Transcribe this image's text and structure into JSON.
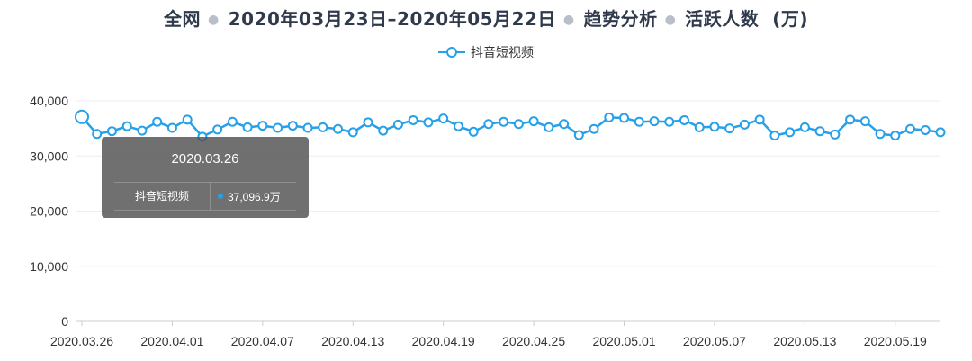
{
  "header": {
    "scope": "全网",
    "date_range": "2020年03月23日–2020年05月22日",
    "analysis": "趋势分析",
    "metric": "活跃人数  (万)"
  },
  "colors": {
    "line": "#26a0e8",
    "grid": "#eeeeee",
    "axis": "#cccccc",
    "text": "#333333",
    "title": "#2f3a4c"
  },
  "tooltip": {
    "date": "2020.03.26",
    "series_name": "抖音短视频",
    "value_text": "37,096.9万"
  },
  "chart_data": {
    "type": "line",
    "title": "",
    "xlabel": "",
    "ylabel": "",
    "ylim": [
      0,
      40000
    ],
    "y_ticks": [
      "0",
      "10,000",
      "20,000",
      "30,000",
      "40,000"
    ],
    "x_tick_labels": [
      "2020.03.26",
      "2020.04.01",
      "2020.04.07",
      "2020.04.13",
      "2020.04.19",
      "2020.04.25",
      "2020.05.01",
      "2020.05.07",
      "2020.05.13",
      "2020.05.19"
    ],
    "grid": true,
    "legend_position": "top-center",
    "x": [
      "2020.03.26",
      "2020.03.27",
      "2020.03.28",
      "2020.03.29",
      "2020.03.30",
      "2020.03.31",
      "2020.04.01",
      "2020.04.02",
      "2020.04.03",
      "2020.04.04",
      "2020.04.05",
      "2020.04.06",
      "2020.04.07",
      "2020.04.08",
      "2020.04.09",
      "2020.04.10",
      "2020.04.11",
      "2020.04.12",
      "2020.04.13",
      "2020.04.14",
      "2020.04.15",
      "2020.04.16",
      "2020.04.17",
      "2020.04.18",
      "2020.04.19",
      "2020.04.20",
      "2020.04.21",
      "2020.04.22",
      "2020.04.23",
      "2020.04.24",
      "2020.04.25",
      "2020.04.26",
      "2020.04.27",
      "2020.04.28",
      "2020.04.29",
      "2020.04.30",
      "2020.05.01",
      "2020.05.02",
      "2020.05.03",
      "2020.05.04",
      "2020.05.05",
      "2020.05.06",
      "2020.05.07",
      "2020.05.08",
      "2020.05.09",
      "2020.05.10",
      "2020.05.11",
      "2020.05.12",
      "2020.05.13",
      "2020.05.14",
      "2020.05.15",
      "2020.05.16",
      "2020.05.17",
      "2020.05.18",
      "2020.05.19",
      "2020.05.20",
      "2020.05.21",
      "2020.05.22"
    ],
    "series": [
      {
        "name": "抖音短视频",
        "values": [
          37096.9,
          34000,
          34500,
          35400,
          34600,
          36200,
          35100,
          36600,
          33500,
          34800,
          36200,
          35200,
          35500,
          35100,
          35500,
          35100,
          35200,
          34900,
          34300,
          36100,
          34600,
          35700,
          36500,
          36100,
          36800,
          35400,
          34400,
          35800,
          36200,
          35800,
          36300,
          35200,
          35800,
          33800,
          34900,
          37000,
          36900,
          36200,
          36300,
          36200,
          36500,
          35200,
          35300,
          35000,
          35700,
          36600,
          33700,
          34300,
          35200,
          34500,
          33900,
          36600,
          36300,
          34000,
          33700,
          34900,
          34700,
          34300
        ]
      }
    ]
  }
}
